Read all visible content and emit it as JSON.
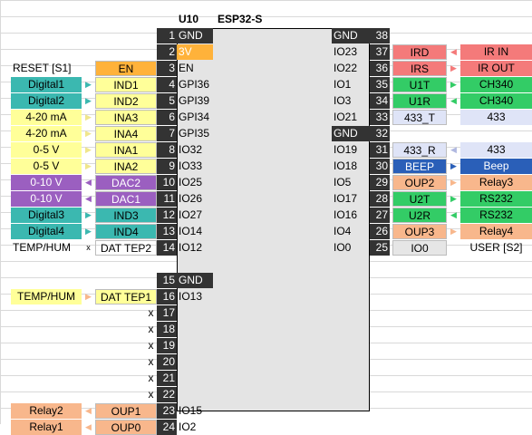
{
  "title": {
    "ref": "U10",
    "part": "ESP32-S"
  },
  "colors": {
    "teal": "#3bb8b0",
    "yellow": "#ffff99",
    "purple": "#9b5fc0",
    "salmon": "#f8b78c",
    "orange": "#ffb23a",
    "red": "#f47a7a",
    "green": "#33cc66",
    "blue": "#2a5fb8",
    "lavender": "#dfe4f7",
    "lightgray": "#e6e6e6",
    "dark": "#333333"
  },
  "left_pins": [
    {
      "num": "1",
      "label": "GND",
      "dark": true
    },
    {
      "num": "2",
      "label": "3V",
      "fill": "orange"
    },
    {
      "num": "3",
      "label": "EN",
      "sig": "EN",
      "sigc": "orange",
      "ext": "RESET [S1]",
      "extc": "none"
    },
    {
      "num": "4",
      "label": "GPI36",
      "sig": "IND1",
      "sigc": "yellow",
      "ext": "Digital1",
      "extc": "teal",
      "arrow": "▶",
      "arrowc": "#3bb8b0"
    },
    {
      "num": "5",
      "label": "GPI39",
      "sig": "IND2",
      "sigc": "yellow",
      "ext": "Digital2",
      "extc": "teal",
      "arrow": "▶",
      "arrowc": "#3bb8b0"
    },
    {
      "num": "6",
      "label": "GPI34",
      "sig": "INA3",
      "sigc": "yellow",
      "ext": "4-20 mA",
      "extc": "yellow",
      "arrow": "▶",
      "arrowc": "#f0e68c"
    },
    {
      "num": "7",
      "label": "GPI35",
      "sig": "INA4",
      "sigc": "yellow",
      "ext": "4-20 mA",
      "extc": "yellow",
      "arrow": "▶",
      "arrowc": "#f0e68c"
    },
    {
      "num": "8",
      "label": "IO32",
      "sig": "INA1",
      "sigc": "yellow",
      "ext": "0-5 V",
      "extc": "yellow",
      "arrow": "▶",
      "arrowc": "#f0e68c"
    },
    {
      "num": "9",
      "label": "IO33",
      "sig": "INA2",
      "sigc": "yellow",
      "ext": "0-5 V",
      "extc": "yellow",
      "arrow": "▶",
      "arrowc": "#f0e68c"
    },
    {
      "num": "10",
      "label": "IO25",
      "sig": "DAC2",
      "sigc": "purple",
      "ext": "0-10 V",
      "extc": "purple",
      "arrow": "◀",
      "arrowc": "#9b5fc0"
    },
    {
      "num": "11",
      "label": "IO26",
      "sig": "DAC1",
      "sigc": "purple",
      "ext": "0-10 V",
      "extc": "purple",
      "arrow": "◀",
      "arrowc": "#9b5fc0"
    },
    {
      "num": "12",
      "label": "IO27",
      "sig": "IND3",
      "sigc": "teal",
      "ext": "Digital3",
      "extc": "teal",
      "arrow": "▶",
      "arrowc": "#3bb8b0"
    },
    {
      "num": "13",
      "label": "IO14",
      "sig": "IND4",
      "sigc": "teal",
      "ext": "Digital4",
      "extc": "teal",
      "arrow": "▶",
      "arrowc": "#3bb8b0"
    },
    {
      "num": "14",
      "label": "IO12",
      "sig": "DAT TEP2",
      "sigc": "none",
      "ext": "TEMP/HUM",
      "extc": "none",
      "arrow": "x",
      "arrowc": "#000"
    },
    {
      "num": "",
      "label": ""
    },
    {
      "num": "15",
      "label": "GND",
      "dark": true
    },
    {
      "num": "16",
      "label": "IO13",
      "sig": "DAT TEP1",
      "sigc": "yellow",
      "ext": "TEMP/HUM",
      "extc": "yellow",
      "arrow": "▶",
      "arrowc": "#f8b78c"
    },
    {
      "num": "17",
      "label": "",
      "x": "x"
    },
    {
      "num": "18",
      "label": "",
      "x": "x"
    },
    {
      "num": "19",
      "label": "",
      "x": "x"
    },
    {
      "num": "20",
      "label": "",
      "x": "x"
    },
    {
      "num": "21",
      "label": "",
      "x": "x"
    },
    {
      "num": "22",
      "label": "",
      "x": "x"
    },
    {
      "num": "23",
      "label": "IO15",
      "sig": "OUP1",
      "sigc": "salmon",
      "ext": "Relay2",
      "extc": "salmon",
      "arrow": "◀",
      "arrowc": "#f8b78c"
    },
    {
      "num": "24",
      "label": "IO2",
      "sig": "OUP0",
      "sigc": "salmon",
      "ext": "Relay1",
      "extc": "salmon",
      "arrow": "◀",
      "arrowc": "#f8b78c"
    }
  ],
  "right_pins": [
    {
      "num": "38",
      "label": "GND",
      "dark": true
    },
    {
      "num": "37",
      "label": "IO23",
      "sig": "IRD",
      "sigc": "red",
      "ext": "IR IN",
      "extc": "red",
      "arrow": "◀",
      "arrowc": "#f47a7a"
    },
    {
      "num": "36",
      "label": "IO22",
      "sig": "IRS",
      "sigc": "red",
      "ext": "IR OUT",
      "extc": "red",
      "arrow": "▶",
      "arrowc": "#f47a7a"
    },
    {
      "num": "35",
      "label": "IO1",
      "sig": "U1T",
      "sigc": "green",
      "ext": "CH340",
      "extc": "green",
      "arrow": "▶",
      "arrowc": "#33cc66"
    },
    {
      "num": "34",
      "label": "IO3",
      "sig": "U1R",
      "sigc": "green",
      "ext": "CH340",
      "extc": "green",
      "arrow": "◀",
      "arrowc": "#33cc66"
    },
    {
      "num": "33",
      "label": "IO21",
      "sig": "433_T",
      "sigc": "lavender",
      "ext": "433",
      "extc": "lavender",
      "arrow": "",
      "arrowc": "#000"
    },
    {
      "num": "32",
      "label": "GND",
      "dark": true
    },
    {
      "num": "31",
      "label": "IO19",
      "sig": "433_R",
      "sigc": "lavender",
      "ext": "433",
      "extc": "lavender",
      "arrow": "◀",
      "arrowc": "#b0b8e0"
    },
    {
      "num": "30",
      "label": "IO18",
      "sig": "BEEP",
      "sigc": "blue",
      "ext": "Beep",
      "extc": "blue",
      "arrow": "▶",
      "arrowc": "#2a5fb8"
    },
    {
      "num": "29",
      "label": "IO5",
      "sig": "OUP2",
      "sigc": "salmon",
      "ext": "Relay3",
      "extc": "salmon",
      "arrow": "▶",
      "arrowc": "#f8b78c"
    },
    {
      "num": "28",
      "label": "IO17",
      "sig": "U2T",
      "sigc": "green",
      "ext": "RS232",
      "extc": "green",
      "arrow": "▶",
      "arrowc": "#33cc66"
    },
    {
      "num": "27",
      "label": "IO16",
      "sig": "U2R",
      "sigc": "green",
      "ext": "RS232",
      "extc": "green",
      "arrow": "◀",
      "arrowc": "#33cc66"
    },
    {
      "num": "26",
      "label": "IO4",
      "sig": "OUP3",
      "sigc": "salmon",
      "ext": "Relay4",
      "extc": "salmon",
      "arrow": "▶",
      "arrowc": "#f8b78c"
    },
    {
      "num": "25",
      "label": "IO0",
      "sig": "IO0",
      "sigc": "lightgray",
      "ext": "USER [S2]",
      "extc": "none",
      "arrow": "",
      "arrowc": "#000"
    }
  ]
}
